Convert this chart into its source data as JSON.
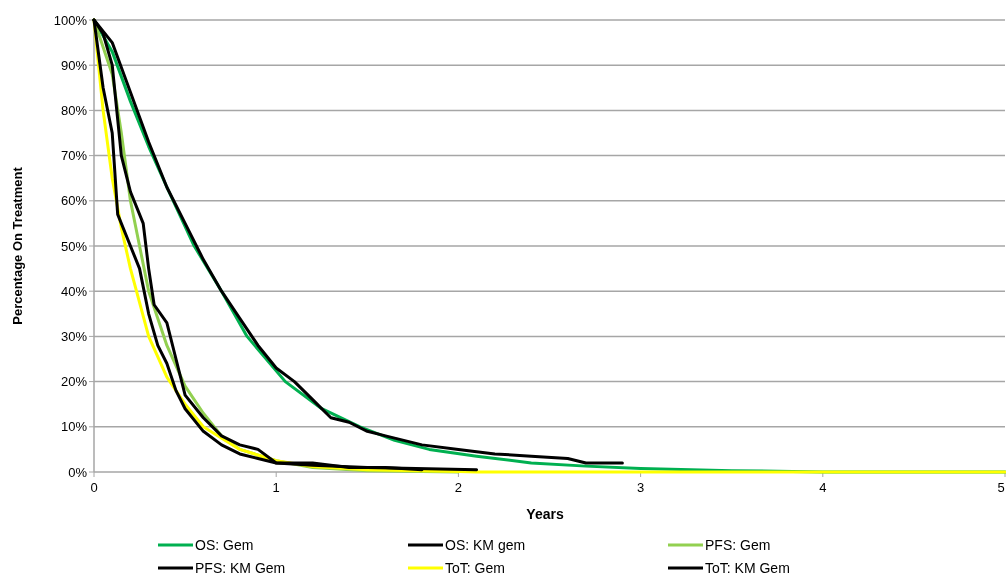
{
  "chart_data": {
    "type": "line",
    "xlabel": "Years",
    "ylabel": "Percentage On Treatment",
    "xlim": [
      0,
      5
    ],
    "xticks": [
      0,
      1,
      2,
      3,
      4,
      5
    ],
    "ylim": [
      0,
      100
    ],
    "yticks": [
      {
        "value": 0,
        "label": "0%"
      },
      {
        "value": 10,
        "label": "10%"
      },
      {
        "value": 20,
        "label": "20%"
      },
      {
        "value": 30,
        "label": "30%"
      },
      {
        "value": 40,
        "label": "40%"
      },
      {
        "value": 50,
        "label": "50%"
      },
      {
        "value": 60,
        "label": "60%"
      },
      {
        "value": 70,
        "label": "70%"
      },
      {
        "value": 80,
        "label": "80%"
      },
      {
        "value": 90,
        "label": "90%"
      },
      {
        "value": 100,
        "label": "100%"
      }
    ],
    "grid": "y",
    "legend": "bottom",
    "marker": "none",
    "line_style": "solid",
    "series": [
      {
        "name": "OS: Gem",
        "color": "#00b050",
        "x": [
          0,
          0.1,
          0.2,
          0.3,
          0.4,
          0.55,
          0.7,
          0.84,
          1.05,
          1.25,
          1.46,
          1.65,
          1.84,
          2.1,
          2.4,
          2.7,
          3,
          3.5,
          4,
          5
        ],
        "values": [
          100,
          93,
          82,
          72,
          63,
          50,
          40,
          30,
          20,
          14,
          10,
          7,
          5,
          3.5,
          2,
          1.3,
          0.8,
          0.3,
          0,
          0
        ]
      },
      {
        "name": "OS: KM gem",
        "color": "#000000",
        "x": [
          0,
          0.1,
          0.2,
          0.3,
          0.4,
          0.5,
          0.6,
          0.7,
          0.8,
          0.9,
          1,
          1.1,
          1.2,
          1.3,
          1.4,
          1.5,
          1.6,
          1.8,
          2,
          2.2,
          2.4,
          2.6,
          2.7,
          2.9
        ],
        "values": [
          100,
          95,
          84,
          73,
          63,
          55,
          47,
          40,
          34,
          28,
          23,
          20,
          16,
          12,
          11,
          9,
          8,
          6,
          5,
          4,
          3.5,
          3,
          2,
          2
        ]
      },
      {
        "name": "PFS: Gem",
        "color": "#92d050",
        "x": [
          0,
          0.1,
          0.15,
          0.2,
          0.25,
          0.3,
          0.4,
          0.5,
          0.6,
          0.7,
          0.8,
          1,
          1.2,
          1.5,
          2
        ],
        "values": [
          100,
          88,
          75,
          60,
          50,
          40,
          28,
          19,
          13,
          8,
          5,
          2.5,
          1,
          0.3,
          0
        ]
      },
      {
        "name": "PFS: KM Gem",
        "color": "#000000",
        "x": [
          0,
          0.05,
          0.1,
          0.15,
          0.2,
          0.27,
          0.3,
          0.33,
          0.4,
          0.45,
          0.5,
          0.6,
          0.7,
          0.8,
          0.9,
          1,
          1.2,
          1.4,
          1.6,
          1.8
        ],
        "values": [
          100,
          97,
          90,
          70,
          62,
          55,
          45,
          37,
          33,
          25,
          17,
          12,
          8,
          6,
          5,
          2,
          2,
          1,
          1,
          0.5
        ]
      },
      {
        "name": "ToT: Gem",
        "color": "#ffff00",
        "x": [
          0,
          0.05,
          0.1,
          0.15,
          0.2,
          0.3,
          0.4,
          0.5,
          0.6,
          0.8,
          1,
          1.2,
          1.5,
          2,
          2.1,
          5
        ],
        "values": [
          100,
          80,
          65,
          54,
          45,
          30,
          21,
          15,
          10,
          5,
          2.5,
          1.2,
          0.5,
          0.1,
          0,
          0
        ]
      },
      {
        "name": "ToT: KM Gem",
        "color": "#000000",
        "x": [
          0,
          0.05,
          0.1,
          0.13,
          0.2,
          0.25,
          0.3,
          0.35,
          0.4,
          0.45,
          0.5,
          0.6,
          0.7,
          0.8,
          0.9,
          1,
          1.2,
          1.5,
          2.1
        ],
        "values": [
          100,
          85,
          75,
          57,
          50,
          45,
          35,
          28,
          24,
          18,
          14,
          9,
          6,
          4,
          3,
          2,
          1.5,
          1,
          0.5
        ]
      }
    ]
  }
}
